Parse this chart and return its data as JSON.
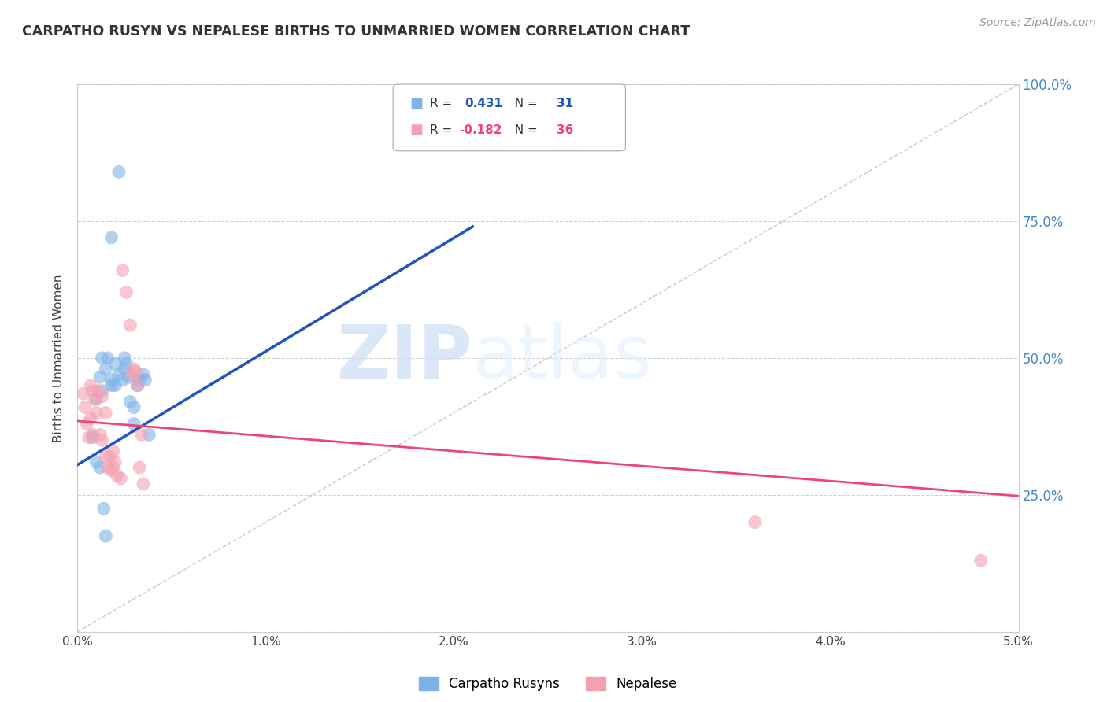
{
  "title": "CARPATHO RUSYN VS NEPALESE BIRTHS TO UNMARRIED WOMEN CORRELATION CHART",
  "source": "Source: ZipAtlas.com",
  "ylabel": "Births to Unmarried Women",
  "blue_color": "#7EB3E8",
  "pink_color": "#F4A0B0",
  "blue_line_color": "#2255BB",
  "pink_line_color": "#EE4477",
  "blue_scatter": [
    [
      0.0008,
      0.355
    ],
    [
      0.001,
      0.425
    ],
    [
      0.0012,
      0.465
    ],
    [
      0.0013,
      0.5
    ],
    [
      0.0013,
      0.44
    ],
    [
      0.0015,
      0.48
    ],
    [
      0.0016,
      0.5
    ],
    [
      0.0018,
      0.45
    ],
    [
      0.0018,
      0.46
    ],
    [
      0.002,
      0.49
    ],
    [
      0.002,
      0.45
    ],
    [
      0.0022,
      0.47
    ],
    [
      0.0024,
      0.46
    ],
    [
      0.0025,
      0.48
    ],
    [
      0.0025,
      0.5
    ],
    [
      0.0026,
      0.49
    ],
    [
      0.0027,
      0.465
    ],
    [
      0.0028,
      0.42
    ],
    [
      0.003,
      0.41
    ],
    [
      0.003,
      0.38
    ],
    [
      0.0032,
      0.45
    ],
    [
      0.0033,
      0.46
    ],
    [
      0.0035,
      0.47
    ],
    [
      0.0036,
      0.46
    ],
    [
      0.0038,
      0.36
    ],
    [
      0.001,
      0.31
    ],
    [
      0.0012,
      0.3
    ],
    [
      0.0014,
      0.225
    ],
    [
      0.0015,
      0.175
    ],
    [
      0.0018,
      0.72
    ],
    [
      0.0022,
      0.84
    ]
  ],
  "pink_scatter": [
    [
      0.0003,
      0.435
    ],
    [
      0.0004,
      0.41
    ],
    [
      0.0005,
      0.38
    ],
    [
      0.0006,
      0.355
    ],
    [
      0.0007,
      0.39
    ],
    [
      0.0008,
      0.36
    ],
    [
      0.0009,
      0.425
    ],
    [
      0.001,
      0.4
    ],
    [
      0.0011,
      0.44
    ],
    [
      0.0012,
      0.36
    ],
    [
      0.0013,
      0.43
    ],
    [
      0.0013,
      0.35
    ],
    [
      0.0015,
      0.32
    ],
    [
      0.0015,
      0.4
    ],
    [
      0.0016,
      0.3
    ],
    [
      0.0017,
      0.32
    ],
    [
      0.0018,
      0.295
    ],
    [
      0.0019,
      0.3
    ],
    [
      0.0019,
      0.33
    ],
    [
      0.002,
      0.31
    ],
    [
      0.0021,
      0.285
    ],
    [
      0.0023,
      0.28
    ],
    [
      0.0024,
      0.66
    ],
    [
      0.0026,
      0.62
    ],
    [
      0.0028,
      0.56
    ],
    [
      0.0029,
      0.47
    ],
    [
      0.003,
      0.48
    ],
    [
      0.0031,
      0.475
    ],
    [
      0.0032,
      0.45
    ],
    [
      0.0034,
      0.36
    ],
    [
      0.0007,
      0.45
    ],
    [
      0.0008,
      0.44
    ],
    [
      0.036,
      0.2
    ],
    [
      0.048,
      0.13
    ],
    [
      0.0033,
      0.3
    ],
    [
      0.0035,
      0.27
    ]
  ],
  "blue_trend_x": [
    0.0,
    0.021
  ],
  "blue_trend_y": [
    0.305,
    0.74
  ],
  "pink_trend_x": [
    0.0,
    0.05
  ],
  "pink_trend_y": [
    0.385,
    0.248
  ],
  "diag_line_x": [
    0.0,
    0.05
  ],
  "diag_line_y": [
    0.0,
    1.0
  ],
  "xlim": [
    0.0,
    0.05
  ],
  "ylim": [
    0.0,
    1.0
  ],
  "xtick_vals": [
    0.0,
    0.01,
    0.02,
    0.03,
    0.04,
    0.05
  ],
  "ytick_vals": [
    0.0,
    0.25,
    0.5,
    0.75,
    1.0
  ],
  "right_yticklabels": [
    "",
    "25.0%",
    "50.0%",
    "75.0%",
    "100.0%"
  ],
  "watermark_zip": "ZIP",
  "watermark_atlas": "atlas",
  "background_color": "#ffffff",
  "grid_color": "#cccccc",
  "legend_r1_val": "0.431",
  "legend_n1_val": "31",
  "legend_r2_val": "-0.182",
  "legend_n2_val": "36"
}
